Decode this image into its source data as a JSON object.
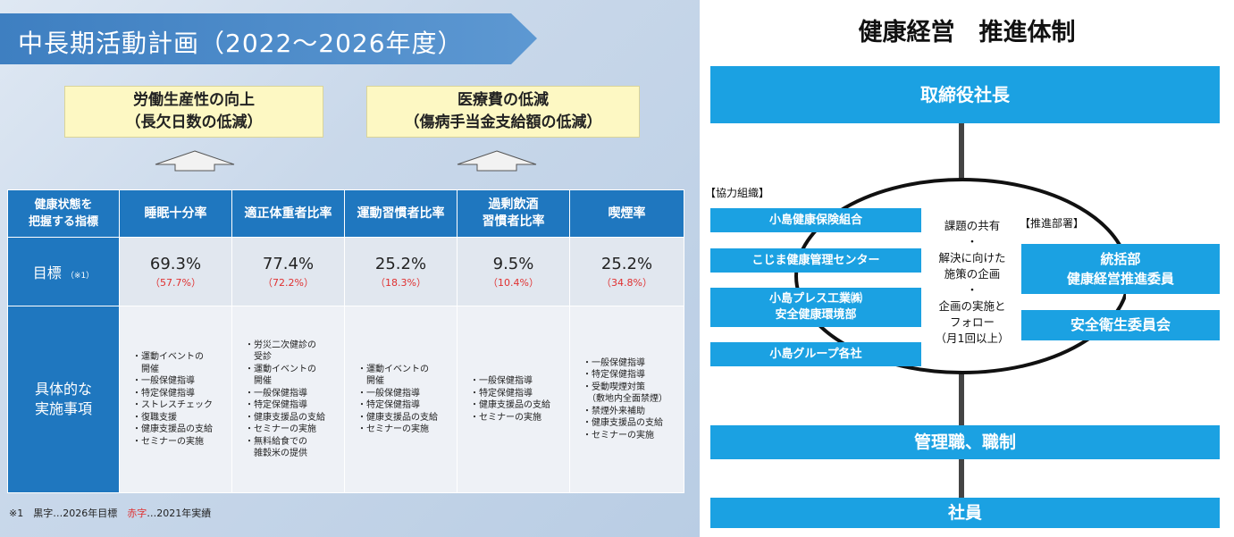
{
  "left": {
    "banner_title": "中長期活動計画（2022～2026年度）",
    "goals": [
      {
        "line1": "労働生産性の向上",
        "line2": "（長欠日数の低減）"
      },
      {
        "line1": "医療費の低減",
        "line2": "（傷病手当金支給額の低減）"
      }
    ],
    "table": {
      "corner_line1": "健康状態を",
      "corner_line2": "把握する指標",
      "columns": [
        {
          "line1": "睡眠十分率",
          "line2": ""
        },
        {
          "line1": "適正体重者比率",
          "line2": ""
        },
        {
          "line1": "運動習慣者比率",
          "line2": ""
        },
        {
          "line1": "過剰飲酒",
          "line2": "習慣者比率"
        },
        {
          "line1": "喫煙率",
          "line2": ""
        }
      ],
      "target_label": "目標",
      "target_note": "（※1）",
      "targets": [
        {
          "value": "69.3%",
          "actual": "（57.7%）"
        },
        {
          "value": "77.4%",
          "actual": "（72.2%）"
        },
        {
          "value": "25.2%",
          "actual": "（18.3%）"
        },
        {
          "value": "9.5%",
          "actual": "（10.4%）"
        },
        {
          "value": "25.2%",
          "actual": "（34.8%）"
        }
      ],
      "detail_label_line1": "具体的な",
      "detail_label_line2": "実施事項",
      "details": [
        [
          "・運動イベントの",
          "　開催",
          "・一般保健指導",
          "・特定保健指導",
          "・ストレスチェック",
          "・復職支援",
          "・健康支援品の支給",
          "・セミナーの実施"
        ],
        [
          "・労災二次健診の",
          "　受診",
          "・運動イベントの",
          "　開催",
          "・一般保健指導",
          "・特定保健指導",
          "・健康支援品の支給",
          "・セミナーの実施",
          "・無料給食での",
          "　雑穀米の提供"
        ],
        [
          "・運動イベントの",
          "　開催",
          "・一般保健指導",
          "・特定保健指導",
          "・健康支援品の支給",
          "・セミナーの実施"
        ],
        [
          "・一般保健指導",
          "・特定保健指導",
          "・健康支援品の支給",
          "・セミナーの実施"
        ],
        [
          "・一般保健指導",
          "・特定保健指導",
          "・受動喫煙対策",
          "　（敷地内全面禁煙）",
          "・禁煙外来補助",
          "・健康支援品の支給",
          "・セミナーの実施"
        ]
      ]
    },
    "footnote_prefix": "※1　黒字…2026年目標　",
    "footnote_red": "赤字",
    "footnote_suffix": "…2021年実績"
  },
  "right": {
    "title": "健康経営　推進体制",
    "ceo": "取締役社長",
    "coop_label": "【協力組織】",
    "coop_orgs": [
      "小島健康保険組合",
      "こじま健康管理センター",
      "小島プレス工業㈱",
      "安全健康環境部",
      "小島グループ各社"
    ],
    "promo_label": "【推進部署】",
    "promo_line1": "統括部",
    "promo_line2": "健康経営推進委員",
    "safety_committee": "安全衛生委員会",
    "process": [
      "課題の共有",
      "・",
      "解決に向けた",
      "施策の企画",
      "・",
      "企画の実施と",
      "フォロー",
      "（月1回以上）"
    ],
    "management": "管理職、職制",
    "staff": "社員"
  },
  "colors": {
    "table_header": "#1f77bf",
    "bar": "#1ba1e2",
    "goal_box": "#fdf8c3",
    "red_text": "#e03030"
  }
}
